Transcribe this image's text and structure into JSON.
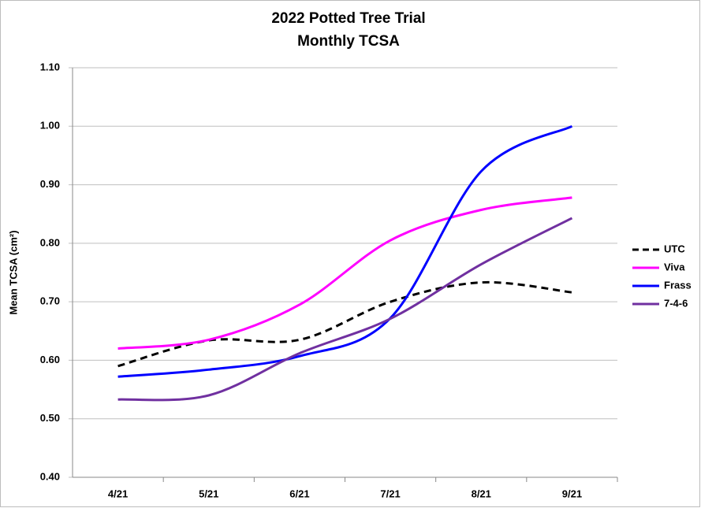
{
  "chart_data": {
    "type": "line",
    "title": "2022 Potted Tree Trial",
    "subtitle": "Monthly TCSA",
    "y_label": "Mean TCSA (cm²)",
    "categories": [
      "4/21",
      "5/21",
      "6/21",
      "7/21",
      "8/21",
      "9/21"
    ],
    "series": [
      {
        "name": "UTC",
        "color": "#000000",
        "line_style": "dashed",
        "values": [
          0.59,
          0.634,
          0.635,
          0.7,
          0.733,
          0.716
        ]
      },
      {
        "name": "Viva",
        "color": "#ff00ff",
        "line_style": "solid",
        "values": [
          0.62,
          0.635,
          0.695,
          0.805,
          0.857,
          0.878
        ]
      },
      {
        "name": "Frass",
        "color": "#0000ff",
        "line_style": "solid",
        "values": [
          0.572,
          0.584,
          0.607,
          0.672,
          0.923,
          1.0
        ]
      },
      {
        "name": "7-4-6",
        "color": "#7030a0",
        "line_style": "solid",
        "values": [
          0.533,
          0.54,
          0.612,
          0.671,
          0.764,
          0.843
        ]
      }
    ],
    "ylim": [
      0.4,
      1.1
    ],
    "yticks": [
      {
        "value": 0.4,
        "label": "0.40"
      },
      {
        "value": 0.5,
        "label": "0.50"
      },
      {
        "value": 0.6,
        "label": "0.60"
      },
      {
        "value": 0.7,
        "label": "0.70"
      },
      {
        "value": 0.8,
        "label": "0.80"
      },
      {
        "value": 0.9,
        "label": "0.90"
      },
      {
        "value": 1.0,
        "label": "1.00"
      },
      {
        "value": 1.1,
        "label": "1.10"
      }
    ],
    "grid": true,
    "smooth": true,
    "legend_position": "right"
  }
}
